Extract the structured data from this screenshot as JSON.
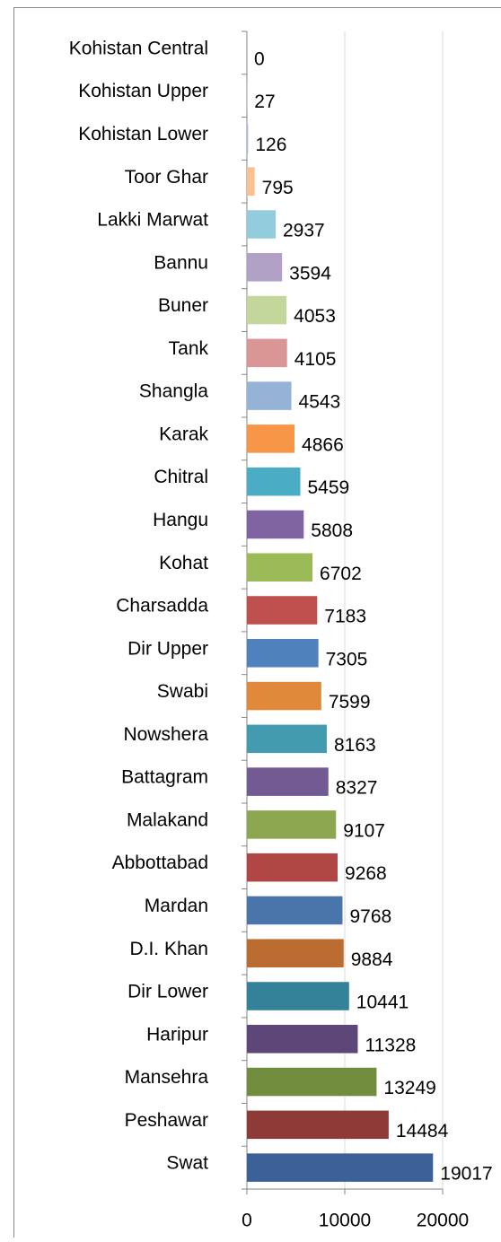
{
  "chart_data": {
    "type": "bar",
    "orientation": "horizontal",
    "categories": [
      "Kohistan Central",
      "Kohistan Upper",
      "Kohistan Lower",
      "Toor Ghar",
      "Lakki Marwat",
      "Bannu",
      "Buner",
      "Tank",
      "Shangla",
      "Karak",
      "Chitral",
      "Hangu",
      "Kohat",
      "Charsadda",
      "Dir Upper",
      "Swabi",
      "Nowshera",
      "Battagram",
      "Malakand",
      "Abbottabad",
      "Mardan",
      "D.I. Khan",
      "Dir Lower",
      "Haripur",
      "Mansehra",
      "Peshawar",
      "Swat"
    ],
    "values": [
      0,
      27,
      126,
      795,
      2937,
      3594,
      4053,
      4105,
      4543,
      4866,
      5459,
      5808,
      6702,
      7183,
      7305,
      7599,
      8163,
      8327,
      9107,
      9268,
      9768,
      9884,
      10441,
      11328,
      13249,
      14484,
      19017
    ],
    "colors": [
      "#a5bee0",
      "#a5bee0",
      "#a5bee0",
      "#fac090",
      "#93cddd",
      "#b2a1c7",
      "#c3d69b",
      "#d99694",
      "#95b3d7",
      "#f79646",
      "#4bacc6",
      "#8064a2",
      "#9bbb59",
      "#c0504d",
      "#4f81bd",
      "#e0893b",
      "#439bb0",
      "#735a93",
      "#8da751",
      "#b04744",
      "#4a75aa",
      "#bc6c30",
      "#338299",
      "#5d4779",
      "#718c3c",
      "#8e3b38",
      "#3c6098"
    ],
    "xlim": [
      0,
      20000
    ],
    "xticks": [
      0,
      10000,
      20000
    ],
    "grid": true
  }
}
